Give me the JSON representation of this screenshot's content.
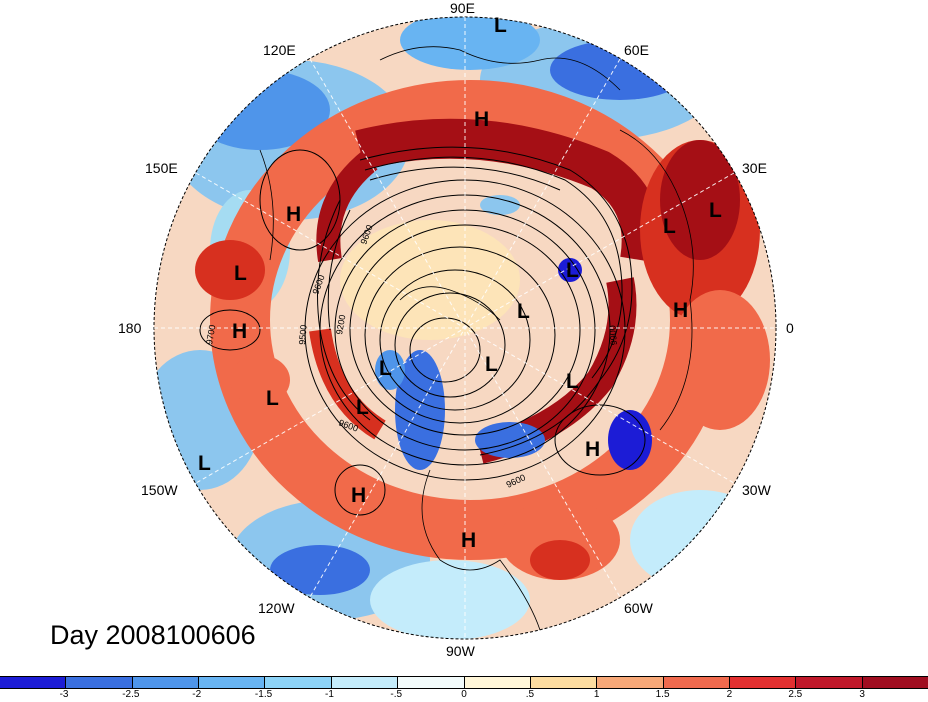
{
  "map": {
    "title": "Day 2008100606",
    "longitude_labels": {
      "n": "90E",
      "ne": "60E",
      "nne": "30E",
      "e": "0",
      "se": "30W",
      "sse": "60W",
      "s": "90W",
      "ssw": "120W",
      "sw": "150W",
      "w": "180",
      "nw": "150E",
      "nnw": "120E"
    },
    "contour_labels": [
      "9700",
      "9600",
      "9200",
      "9500",
      "9600",
      "9900",
      "9600",
      "9600"
    ],
    "pressure_centers": [
      {
        "type": "H",
        "label": "H"
      },
      {
        "type": "L",
        "label": "L"
      },
      {
        "type": "H",
        "label": "H"
      },
      {
        "type": "L",
        "label": "L"
      },
      {
        "type": "H",
        "label": "H"
      },
      {
        "type": "L",
        "label": "L"
      },
      {
        "type": "L",
        "label": "L"
      },
      {
        "type": "L",
        "label": "L"
      },
      {
        "type": "L",
        "label": "L"
      },
      {
        "type": "L",
        "label": "L"
      },
      {
        "type": "H",
        "label": "H"
      },
      {
        "type": "L",
        "label": "L"
      },
      {
        "type": "L",
        "label": "L"
      },
      {
        "type": "L",
        "label": "L"
      },
      {
        "type": "H",
        "label": "H"
      },
      {
        "type": "H",
        "label": "H"
      },
      {
        "type": "H",
        "label": "H"
      },
      {
        "type": "L",
        "label": "L"
      },
      {
        "type": "L",
        "label": "L"
      }
    ],
    "colors": {
      "deep_red": "#a50f15",
      "red": "#d7301f",
      "orange": "#f16a4a",
      "light_orange": "#f9a88a",
      "cream": "#fde4b8",
      "pale": "#fff8e6",
      "pale_blue": "#d9f2fb",
      "light_blue": "#a5dcf2",
      "mid_blue": "#67b3e8",
      "blue": "#3a7fdc",
      "deep_blue": "#1a3ccc"
    }
  },
  "colorbar": {
    "tick_labels": [
      "-3",
      "-2.5",
      "-2",
      "-1.5",
      "-1",
      "-.5",
      "0",
      ".5",
      "1",
      "1.5",
      "2",
      "2.5",
      "3"
    ],
    "segment_colors": [
      "#1c1cd6",
      "#3a6fe0",
      "#4f95ea",
      "#68b4f2",
      "#8dd3f7",
      "#c4ecfb",
      "#f2fbfb",
      "#fff6d8",
      "#fcdca0",
      "#f7a878",
      "#f06a4e",
      "#e33030",
      "#c0182a",
      "#a00d20"
    ]
  }
}
